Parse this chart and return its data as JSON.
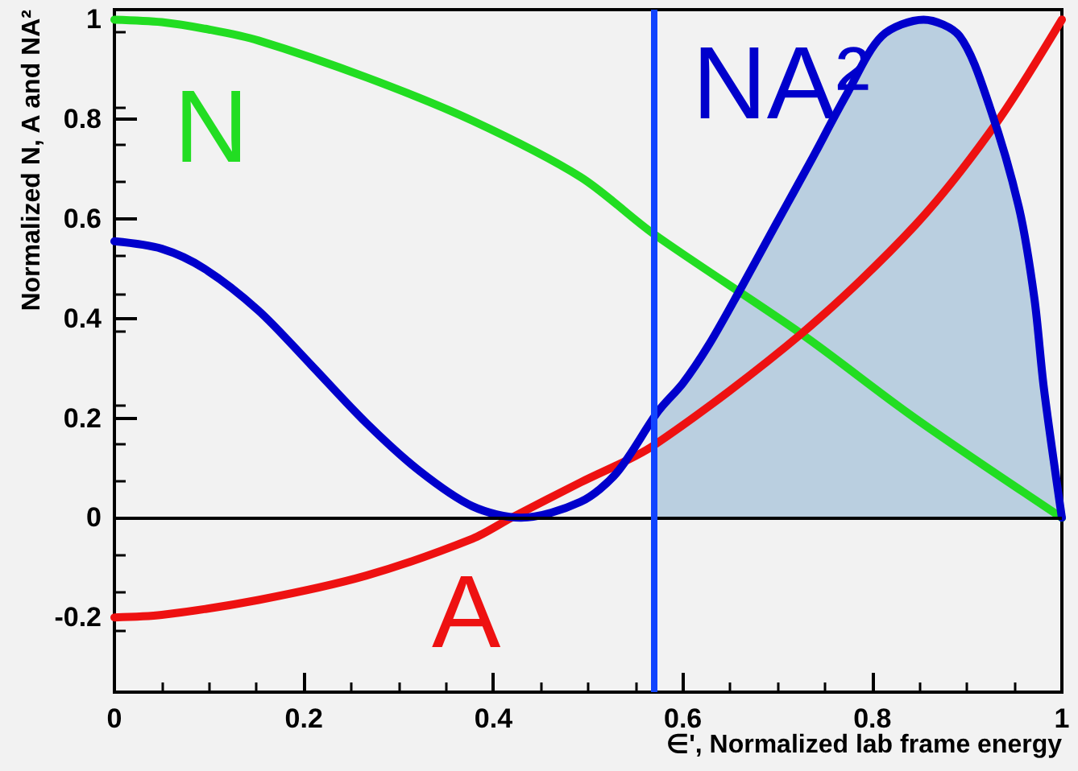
{
  "chart_data": {
    "type": "line",
    "xlabel": "∈', Normalized lab frame energy",
    "ylabel": "Normalized N, A and NA²",
    "xlim": [
      0,
      1
    ],
    "xticks": [
      0,
      0.2,
      0.4,
      0.6,
      0.8,
      1
    ],
    "ylim": [
      -0.35,
      1.02
    ],
    "yticks": [
      -0.2,
      0,
      0.2,
      0.4,
      0.6,
      0.8,
      1
    ],
    "marker": "none",
    "line_style": "solid",
    "series": [
      {
        "name": "N",
        "color": "#22dd22",
        "x": [
          0,
          0.05,
          0.1,
          0.152,
          0.266,
          0.378,
          0.492,
          0.569,
          0.726,
          0.845,
          1
        ],
        "values": [
          1,
          0.995,
          0.98,
          0.958,
          0.884,
          0.797,
          0.684,
          0.57,
          0.368,
          0.2,
          0
        ]
      },
      {
        "name": "A",
        "color": "#ee1111",
        "x": [
          0,
          0.05,
          0.152,
          0.266,
          0.378,
          0.419,
          0.492,
          0.569,
          0.726,
          0.845,
          0.93,
          1
        ],
        "values": [
          -0.2,
          -0.195,
          -0.165,
          -0.116,
          -0.042,
          0,
          0.071,
          0.145,
          0.371,
          0.587,
          0.79,
          1
        ]
      },
      {
        "type": "area",
        "color": "#a7c3da",
        "x": [
          0.572,
          0.6,
          0.627,
          0.659,
          0.697,
          0.735,
          0.772,
          0.81,
          0.854,
          0.892,
          0.924,
          0.955,
          0.971,
          0.981,
          1
        ],
        "values": [
          0.2,
          0.27,
          0.346,
          0.453,
          0.585,
          0.716,
          0.847,
          0.967,
          1,
          0.967,
          0.824,
          0.62,
          0.44,
          0.26,
          0
        ]
      },
      {
        "name": "NA²",
        "color": "#0000cc",
        "x": [
          0,
          0.05,
          0.095,
          0.152,
          0.208,
          0.266,
          0.322,
          0.378,
          0.429,
          0.492,
          0.53,
          0.574,
          0.6,
          0.627,
          0.659,
          0.697,
          0.735,
          0.772,
          0.81,
          0.854,
          0.892,
          0.924,
          0.955,
          0.971,
          0.981,
          1
        ],
        "values": [
          0.555,
          0.54,
          0.5,
          0.416,
          0.306,
          0.19,
          0.094,
          0.023,
          0,
          0.032,
          0.09,
          0.214,
          0.27,
          0.346,
          0.453,
          0.585,
          0.716,
          0.847,
          0.967,
          1,
          0.967,
          0.824,
          0.62,
          0.44,
          0.26,
          0
        ]
      }
    ],
    "ref_lines": [
      {
        "axis": "y",
        "value": 0,
        "color": "#000000"
      },
      {
        "axis": "x",
        "value": 0.57,
        "color": "#1144ff"
      }
    ]
  }
}
